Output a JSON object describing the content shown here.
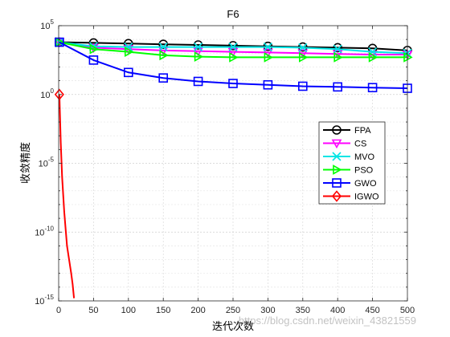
{
  "chart_data": {
    "type": "line",
    "title": "F6",
    "xlabel": "迭代次数",
    "ylabel": "收敛精度",
    "xlim": [
      0,
      500
    ],
    "ylim_exponent": [
      -15,
      5
    ],
    "yscale": "log",
    "grid": true,
    "legend_position": "right",
    "x_ticks": [
      "0",
      "50",
      "100",
      "150",
      "200",
      "250",
      "300",
      "350",
      "400",
      "450",
      "500"
    ],
    "y_ticks": [
      {
        "base": "10",
        "exp": "5"
      },
      {
        "base": "10",
        "exp": "0"
      },
      {
        "base": "10",
        "exp": "-5"
      },
      {
        "base": "10",
        "exp": "-10"
      },
      {
        "base": "10",
        "exp": "-15"
      }
    ],
    "series": [
      {
        "name": "FPA",
        "color": "#000000",
        "marker": "circle",
        "x": [
          1,
          50,
          100,
          150,
          200,
          250,
          300,
          350,
          400,
          450,
          500
        ],
        "log10_y": [
          3.8,
          3.75,
          3.7,
          3.65,
          3.6,
          3.55,
          3.5,
          3.45,
          3.4,
          3.35,
          3.2
        ]
      },
      {
        "name": "CS",
        "color": "#ff00ff",
        "marker": "triangle-down",
        "x": [
          1,
          50,
          100,
          150,
          200,
          250,
          300,
          350,
          400,
          450,
          500
        ],
        "log10_y": [
          3.8,
          3.4,
          3.3,
          3.2,
          3.15,
          3.1,
          3.05,
          3.0,
          2.95,
          2.9,
          2.9
        ]
      },
      {
        "name": "MVO",
        "color": "#00e5e5",
        "marker": "x",
        "x": [
          1,
          50,
          100,
          150,
          200,
          250,
          300,
          350,
          400,
          450,
          500
        ],
        "log10_y": [
          3.8,
          3.5,
          3.45,
          3.45,
          3.45,
          3.45,
          3.45,
          3.4,
          3.3,
          3.1,
          3.0
        ]
      },
      {
        "name": "PSO",
        "color": "#00ff00",
        "marker": "triangle-right",
        "x": [
          1,
          50,
          100,
          150,
          200,
          250,
          300,
          350,
          400,
          450,
          500
        ],
        "log10_y": [
          3.8,
          3.3,
          3.1,
          2.85,
          2.75,
          2.7,
          2.7,
          2.7,
          2.7,
          2.7,
          2.7
        ]
      },
      {
        "name": "GWO",
        "color": "#0000ff",
        "marker": "square",
        "x": [
          1,
          50,
          100,
          150,
          200,
          250,
          300,
          350,
          400,
          450,
          500
        ],
        "log10_y": [
          3.8,
          2.5,
          1.6,
          1.2,
          0.95,
          0.8,
          0.7,
          0.6,
          0.55,
          0.5,
          0.45
        ]
      },
      {
        "name": "IGWO",
        "color": "#ff0000",
        "marker": "diamond",
        "x": [
          1,
          3,
          5,
          8,
          10,
          12,
          15,
          18,
          20,
          22
        ],
        "log10_y": [
          0.0,
          -3.5,
          -6.0,
          -8.5,
          -9.8,
          -11.0,
          -12.0,
          -13.0,
          -13.8,
          -14.8
        ],
        "marked_points": 1
      }
    ],
    "watermark": "https://blog.csdn.net/weixin_43821559"
  }
}
